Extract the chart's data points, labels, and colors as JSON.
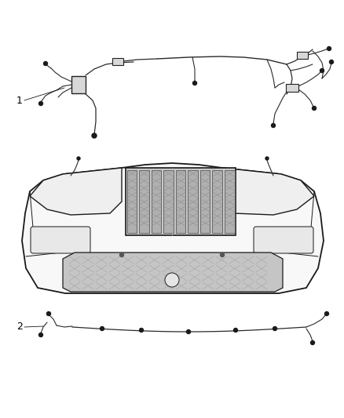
{
  "bg_color": "#ffffff",
  "fig_width": 4.38,
  "fig_height": 5.33,
  "dpi": 100,
  "item1_label": "1",
  "item2_label": "2",
  "lc": "#1a1a1a",
  "wc": "#2a2a2a",
  "bumper_fill": "#f5f5f5",
  "bumper_edge": "#1a1a1a",
  "grill_bg": "#d0d0d0",
  "grill_slat": "#b8b8b8",
  "grill_edge": "#222222",
  "mesh_color": "#c0c0c0",
  "mesh_line": "#909090"
}
